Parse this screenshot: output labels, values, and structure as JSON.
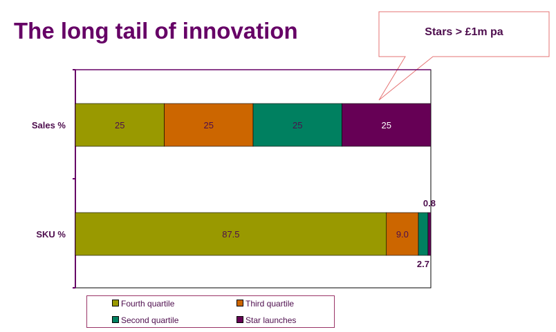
{
  "title": "The long tail of innovation",
  "callout": "Stars > £1m pa",
  "colors": {
    "fourth": "#999900",
    "third": "#cc6600",
    "second": "#008060",
    "star": "#660055",
    "title": "#660066",
    "axis": "#660066"
  },
  "legend": [
    {
      "label": "Fourth quartile",
      "color": "#999900"
    },
    {
      "label": "Third quartile",
      "color": "#cc6600"
    },
    {
      "label": "Second quartile",
      "color": "#008060"
    },
    {
      "label": "Star launches",
      "color": "#660055"
    }
  ],
  "chart_data": {
    "type": "bar",
    "orientation": "horizontal",
    "stacked": true,
    "categories": [
      "Sales %",
      "SKU %"
    ],
    "series": [
      {
        "name": "Fourth quartile",
        "values": [
          25,
          87.5
        ],
        "labels": [
          "25",
          "87.5"
        ]
      },
      {
        "name": "Third quartile",
        "values": [
          25,
          9.0
        ],
        "labels": [
          "25",
          "9.0"
        ]
      },
      {
        "name": "Second quartile",
        "values": [
          25,
          2.7
        ],
        "labels": [
          "25",
          "2.7"
        ]
      },
      {
        "name": "Star launches",
        "values": [
          25,
          0.8
        ],
        "labels": [
          "25",
          "0.8"
        ]
      }
    ],
    "xlim": [
      0,
      100
    ],
    "grid": false,
    "legend_position": "bottom"
  }
}
